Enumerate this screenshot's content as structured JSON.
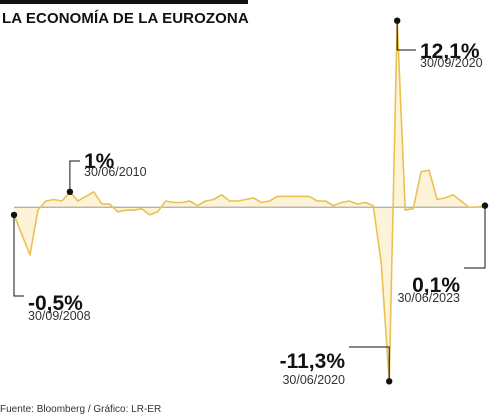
{
  "chart_data": {
    "type": "area",
    "title": "LA ECONOMÍA DE LA EUROZONA",
    "source": "Fuente: Bloomberg / Gráfico: LR-ER",
    "colors": {
      "line": "#e9c253",
      "fill": "#fcf3d9",
      "baseline": "#8a8a8a",
      "annotation": "#111111"
    },
    "ylim": [
      -11.8,
      12.6
    ],
    "x_start": "2008-09-30",
    "x_end": "2023-06-30",
    "x": [
      "2008-09-30",
      "2008-12-31",
      "2009-03-31",
      "2009-06-30",
      "2009-09-30",
      "2009-12-31",
      "2010-03-31",
      "2010-06-30",
      "2010-09-30",
      "2010-12-31",
      "2011-03-31",
      "2011-06-30",
      "2011-09-30",
      "2011-12-31",
      "2012-03-31",
      "2012-06-30",
      "2012-09-30",
      "2012-12-31",
      "2013-03-31",
      "2013-06-30",
      "2013-09-30",
      "2013-12-31",
      "2014-03-31",
      "2014-06-30",
      "2014-09-30",
      "2014-12-31",
      "2015-03-31",
      "2015-06-30",
      "2015-09-30",
      "2015-12-31",
      "2016-03-31",
      "2016-06-30",
      "2016-09-30",
      "2016-12-31",
      "2017-03-31",
      "2017-06-30",
      "2017-09-30",
      "2017-12-31",
      "2018-03-31",
      "2018-06-30",
      "2018-09-30",
      "2018-12-31",
      "2019-03-31",
      "2019-06-30",
      "2019-09-30",
      "2019-12-31",
      "2020-03-31",
      "2020-06-30",
      "2020-09-30",
      "2020-12-31",
      "2021-03-31",
      "2021-06-30",
      "2021-09-30",
      "2021-12-31",
      "2022-03-31",
      "2022-06-30",
      "2022-09-30",
      "2022-12-31",
      "2023-03-31",
      "2023-06-30"
    ],
    "series": [
      {
        "values": [
          -0.5,
          -1.8,
          -3.1,
          -0.2,
          0.4,
          0.5,
          0.4,
          1.0,
          0.4,
          0.7,
          1.0,
          0.2,
          0.2,
          -0.3,
          -0.2,
          -0.2,
          -0.1,
          -0.5,
          -0.3,
          0.4,
          0.3,
          0.3,
          0.4,
          0.1,
          0.4,
          0.5,
          0.8,
          0.4,
          0.4,
          0.5,
          0.6,
          0.3,
          0.4,
          0.7,
          0.7,
          0.7,
          0.7,
          0.7,
          0.4,
          0.4,
          0.1,
          0.3,
          0.4,
          0.2,
          0.3,
          0.1,
          -3.6,
          -11.3,
          12.1,
          -0.2,
          -0.1,
          2.3,
          2.4,
          0.5,
          0.6,
          0.8,
          0.4,
          0.0,
          0.0,
          0.1
        ]
      }
    ],
    "annotations": [
      {
        "value": "-0,5%",
        "date": "30/09/2008",
        "index": 0
      },
      {
        "value": "1%",
        "date": "30/06/2010",
        "index": 7
      },
      {
        "value": "-11,3%",
        "date": "30/06/2020",
        "index": 47
      },
      {
        "value": "12,1%",
        "date": "30/09/2020",
        "index": 48
      },
      {
        "value": "0,1%",
        "date": "30/06/2023",
        "index": 59
      }
    ]
  }
}
